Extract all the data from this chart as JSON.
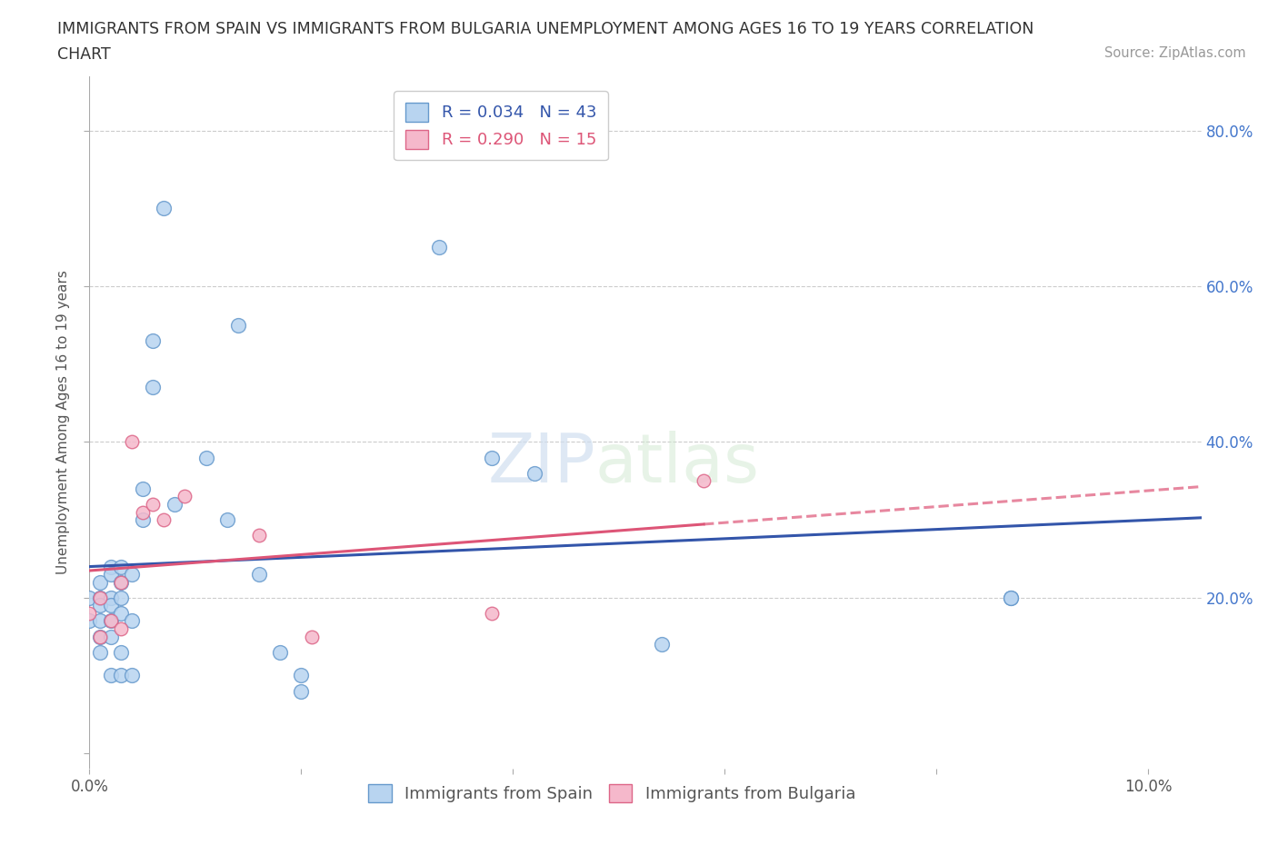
{
  "title_line1": "IMMIGRANTS FROM SPAIN VS IMMIGRANTS FROM BULGARIA UNEMPLOYMENT AMONG AGES 16 TO 19 YEARS CORRELATION",
  "title_line2": "CHART",
  "source_text": "Source: ZipAtlas.com",
  "ylabel": "Unemployment Among Ages 16 to 19 years",
  "xlim": [
    0.0,
    0.105
  ],
  "ylim": [
    -0.02,
    0.87
  ],
  "xticks": [
    0.0,
    0.02,
    0.04,
    0.06,
    0.08,
    0.1
  ],
  "xtick_labels": [
    "0.0%",
    "",
    "",
    "",
    "",
    "10.0%"
  ],
  "yticks": [
    0.0,
    0.2,
    0.4,
    0.6,
    0.8
  ],
  "ytick_labels_right": [
    "",
    "20.0%",
    "40.0%",
    "60.0%",
    "80.0%"
  ],
  "spain_color": "#b8d4f0",
  "spain_edge_color": "#6699cc",
  "bulgaria_color": "#f5b8cb",
  "bulgaria_edge_color": "#dd6688",
  "spain_line_color": "#3355aa",
  "bulgaria_line_color": "#dd5577",
  "R_spain": 0.034,
  "N_spain": 43,
  "R_bulgaria": 0.29,
  "N_bulgaria": 15,
  "watermark_zip": "ZIP",
  "watermark_atlas": "atlas",
  "spain_x": [
    0.0,
    0.0,
    0.001,
    0.001,
    0.001,
    0.001,
    0.001,
    0.001,
    0.002,
    0.002,
    0.002,
    0.002,
    0.002,
    0.002,
    0.002,
    0.003,
    0.003,
    0.003,
    0.003,
    0.003,
    0.003,
    0.004,
    0.004,
    0.004,
    0.005,
    0.005,
    0.006,
    0.006,
    0.007,
    0.008,
    0.011,
    0.013,
    0.014,
    0.016,
    0.018,
    0.02,
    0.02,
    0.033,
    0.038,
    0.042,
    0.054,
    0.087,
    0.087
  ],
  "spain_y": [
    0.2,
    0.17,
    0.22,
    0.2,
    0.19,
    0.17,
    0.15,
    0.13,
    0.24,
    0.23,
    0.2,
    0.19,
    0.17,
    0.15,
    0.1,
    0.24,
    0.22,
    0.2,
    0.18,
    0.13,
    0.1,
    0.23,
    0.17,
    0.1,
    0.34,
    0.3,
    0.53,
    0.47,
    0.7,
    0.32,
    0.38,
    0.3,
    0.55,
    0.23,
    0.13,
    0.1,
    0.08,
    0.65,
    0.38,
    0.36,
    0.14,
    0.2,
    0.2
  ],
  "bulgaria_x": [
    0.0,
    0.001,
    0.001,
    0.002,
    0.003,
    0.003,
    0.004,
    0.005,
    0.006,
    0.007,
    0.009,
    0.016,
    0.021,
    0.038,
    0.058
  ],
  "bulgaria_y": [
    0.18,
    0.2,
    0.15,
    0.17,
    0.22,
    0.16,
    0.4,
    0.31,
    0.32,
    0.3,
    0.33,
    0.28,
    0.15,
    0.18,
    0.35
  ],
  "tick_color": "#4477cc",
  "grid_color": "#cccccc",
  "tick_label_fontsize": 12
}
